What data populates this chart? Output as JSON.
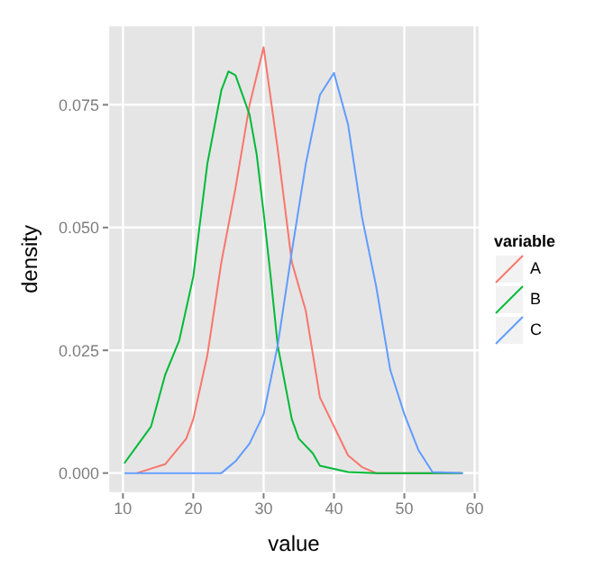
{
  "chart_data": {
    "type": "line",
    "xlabel": "value",
    "ylabel": "density",
    "legend_title": "variable",
    "legend": "right",
    "grid": true,
    "marker": "none",
    "xlim": [
      7.9,
      60.7
    ],
    "xticks": [
      10,
      20,
      30,
      40,
      50,
      60
    ],
    "ylim": [
      -0.0041,
      0.0912
    ],
    "yticks": [
      {
        "value": 0,
        "label": "0.000"
      },
      {
        "value": 0.025,
        "label": "0.025"
      },
      {
        "value": 0.05,
        "label": "0.050"
      },
      {
        "value": 0.075,
        "label": "0.075"
      }
    ],
    "series": [
      {
        "name": "A",
        "color": "#f8766d",
        "x": [
          12,
          16,
          19,
          20,
          22,
          24,
          26,
          28,
          30,
          32,
          34,
          36,
          38,
          40,
          42,
          44,
          46,
          58.3
        ],
        "values": [
          0,
          0.0018,
          0.007,
          0.011,
          0.024,
          0.043,
          0.058,
          0.075,
          0.0867,
          0.066,
          0.043,
          0.033,
          0.0154,
          0.0095,
          0.0036,
          0.0012,
          0,
          0
        ]
      },
      {
        "name": "B",
        "color": "#00ba38",
        "x": [
          10.2,
          14,
          16,
          18,
          20,
          22,
          24,
          25,
          26,
          28,
          29,
          30,
          31,
          32,
          34,
          35,
          37,
          38,
          42,
          46,
          58.3
        ],
        "values": [
          0.002,
          0.0095,
          0.02,
          0.027,
          0.04,
          0.063,
          0.078,
          0.0818,
          0.081,
          0.073,
          0.065,
          0.053,
          0.04,
          0.026,
          0.011,
          0.007,
          0.004,
          0.0015,
          0.0002,
          0,
          0
        ]
      },
      {
        "name": "C",
        "color": "#619cff",
        "x": [
          10.2,
          24,
          26,
          28,
          30,
          32,
          34,
          36,
          38,
          40,
          42,
          44,
          46,
          48,
          50,
          52,
          54,
          58.3
        ],
        "values": [
          0,
          0,
          0.0024,
          0.006,
          0.012,
          0.026,
          0.045,
          0.063,
          0.077,
          0.0815,
          0.071,
          0.052,
          0.038,
          0.021,
          0.012,
          0.0047,
          0.0002,
          0
        ]
      }
    ]
  }
}
